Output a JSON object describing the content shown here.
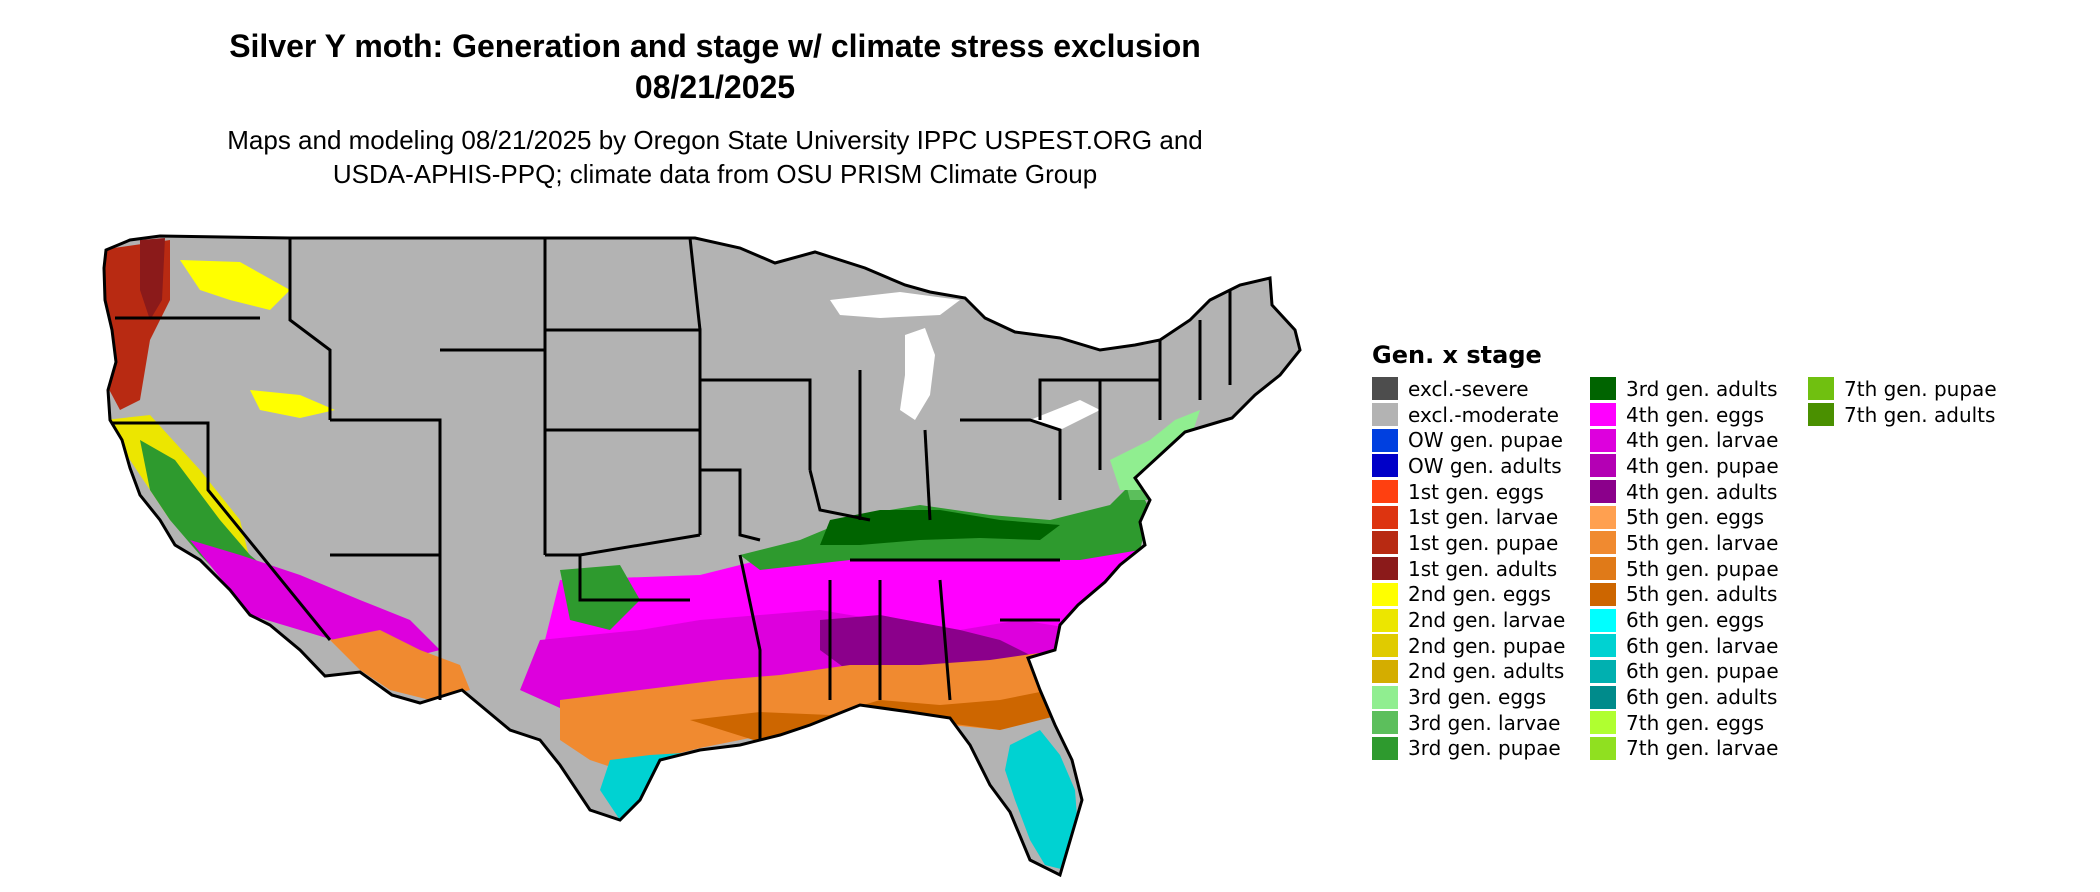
{
  "header": {
    "title_line1": "Silver Y moth: Generation and stage w/ climate stress exclusion",
    "title_line2": "08/21/2025",
    "subtitle_line1": "Maps and modeling 08/21/2025 by Oregon State University IPPC USPEST.ORG and",
    "subtitle_line2": "USDA-APHIS-PPQ; climate data from OSU PRISM Climate Group"
  },
  "map": {
    "region": "conterminous-us",
    "base_color": "#b3b3b3",
    "border_color": "#000000",
    "water_color": "#ffffff"
  },
  "legend": {
    "title": "Gen. x stage",
    "items": [
      {
        "label": "excl.-severe",
        "color": "#4d4d4d"
      },
      {
        "label": "excl.-moderate",
        "color": "#b3b3b3"
      },
      {
        "label": "OW gen. pupae",
        "color": "#0040e0"
      },
      {
        "label": "OW gen. adults",
        "color": "#0000c8"
      },
      {
        "label": "1st gen. eggs",
        "color": "#ff4010"
      },
      {
        "label": "1st gen. larvae",
        "color": "#dd3410"
      },
      {
        "label": "1st gen. pupae",
        "color": "#b82a12"
      },
      {
        "label": "1st gen. adults",
        "color": "#8b1a1a"
      },
      {
        "label": "2nd gen. eggs",
        "color": "#ffff00"
      },
      {
        "label": "2nd gen. larvae",
        "color": "#ece600"
      },
      {
        "label": "2nd gen. pupae",
        "color": "#e0cb00"
      },
      {
        "label": "2nd gen. adults",
        "color": "#d4ad00"
      },
      {
        "label": "3rd gen. eggs",
        "color": "#90ee90"
      },
      {
        "label": "3rd gen. larvae",
        "color": "#5cbf5c"
      },
      {
        "label": "3rd gen. pupae",
        "color": "#2e9a2e"
      },
      {
        "label": "3rd gen. adults",
        "color": "#006400"
      },
      {
        "label": "4th gen. eggs",
        "color": "#ff00ff"
      },
      {
        "label": "4th gen. larvae",
        "color": "#dd00dd"
      },
      {
        "label": "4th gen. pupae",
        "color": "#b400b4"
      },
      {
        "label": "4th gen. adults",
        "color": "#8b008b"
      },
      {
        "label": "5th gen. eggs",
        "color": "#ffa050"
      },
      {
        "label": "5th gen. larvae",
        "color": "#f08a30"
      },
      {
        "label": "5th gen. pupae",
        "color": "#e07a18"
      },
      {
        "label": "5th gen. adults",
        "color": "#cd6600"
      },
      {
        "label": "6th gen. eggs",
        "color": "#00ffff"
      },
      {
        "label": "6th gen. larvae",
        "color": "#00d2d2"
      },
      {
        "label": "6th gen. pupae",
        "color": "#00b0b0"
      },
      {
        "label": "6th gen. adults",
        "color": "#008b8b"
      },
      {
        "label": "7th gen. eggs",
        "color": "#b0ff30"
      },
      {
        "label": "7th gen. larvae",
        "color": "#90e020"
      },
      {
        "label": "7th gen. pupae",
        "color": "#70c010"
      },
      {
        "label": "7th gen. adults",
        "color": "#4a9000"
      }
    ]
  }
}
